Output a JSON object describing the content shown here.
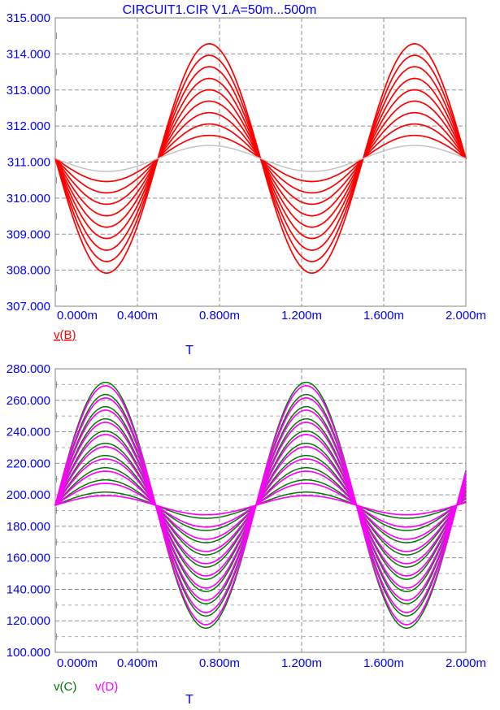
{
  "window": {
    "title": "CIRCUIT1.CIR V1.A=50m...500m"
  },
  "colors": {
    "tick_text": "#0000ff",
    "title_text": "#0000ff",
    "border": "#808080",
    "grid_major": "#8f8f8f",
    "grid_minor": "#a9a9a9",
    "trace_red": "#ff0000",
    "trace_gray": "#bfbfbf",
    "trace_green": "#007700",
    "trace_magenta": "#ff00ff",
    "background": "#ffffff"
  },
  "chart_data": [
    {
      "type": "line",
      "title": "CIRCUIT1.CIR V1.A=50m...500m",
      "xlabel": "T",
      "x_unit": "ms",
      "xlim": [
        0,
        2
      ],
      "ylim": [
        307,
        315
      ],
      "y_major_step": 1,
      "y_minor_step": 0.5,
      "x_major_step": 0.4,
      "grid": true,
      "x_ticks": [
        "0.000m",
        "0.400m",
        "0.800m",
        "1.200m",
        "1.600m",
        "2.000m"
      ],
      "y_ticks": [
        "315.000",
        "314.000",
        "313.000",
        "312.000",
        "311.000",
        "310.000",
        "309.000",
        "308.000",
        "307.000"
      ],
      "legend": [
        {
          "label": "v(B)",
          "color": "#ff0000",
          "underline": true
        }
      ],
      "sweep": "V1.A stepped 50m to 500m, 10 branches",
      "series": [
        {
          "name": "v(B)",
          "color": "#ff0000",
          "waveform": "sine",
          "offset": 311.1,
          "period_ms": 1.0,
          "sign": -1,
          "amplitudes": [
            0.64,
            0.955,
            1.27,
            1.59,
            1.905,
            2.22,
            2.545,
            2.86,
            3.18
          ],
          "stroke_width": 1.7
        },
        {
          "name": "v(B)-smallest-step",
          "color": "#bfbfbf",
          "waveform": "sine",
          "offset": 311.1,
          "period_ms": 1.0,
          "sign": -1,
          "amplitudes": [
            0.36
          ],
          "stroke_width": 1.4
        }
      ]
    },
    {
      "type": "line",
      "title": "",
      "xlabel": "T",
      "x_unit": "ms",
      "xlim": [
        0,
        2
      ],
      "ylim": [
        100,
        280
      ],
      "y_major_step": 20,
      "y_minor_step": 10,
      "x_major_step": 0.4,
      "grid": true,
      "x_ticks": [
        "0.000m",
        "0.400m",
        "0.800m",
        "1.200m",
        "1.600m",
        "2.000m"
      ],
      "y_ticks": [
        "280.000",
        "260.000",
        "240.000",
        "220.000",
        "200.000",
        "180.000",
        "160.000",
        "140.000",
        "120.000",
        "100.000"
      ],
      "legend": [
        {
          "label": "v(C)",
          "color": "#007700",
          "underline": false
        },
        {
          "label": "v(D)",
          "color": "#ff00ff",
          "underline": false
        }
      ],
      "sweep": "V1.A stepped 50m to 500m, 10 branches",
      "series": [
        {
          "name": "v(C)",
          "color": "#007700",
          "waveform": "sine",
          "offset": 193.4,
          "period_ms": 0.978,
          "sign": 1,
          "amplitudes": [
            8.3,
            16.05,
            23.8,
            31.55,
            39.3,
            47.05,
            54.8,
            62.55,
            70.3,
            78.05
          ],
          "stroke_width": 1.5
        },
        {
          "name": "v(D)",
          "color": "#ff00ff",
          "waveform": "sine",
          "offset": 193.4,
          "period_ms": 0.978,
          "sign": 1,
          "amplitudes": [
            6.1,
            13.85,
            21.6,
            29.35,
            37.1,
            44.85,
            52.6,
            60.35,
            68.1,
            75.85
          ],
          "stroke_width": 1.7
        }
      ]
    }
  ]
}
